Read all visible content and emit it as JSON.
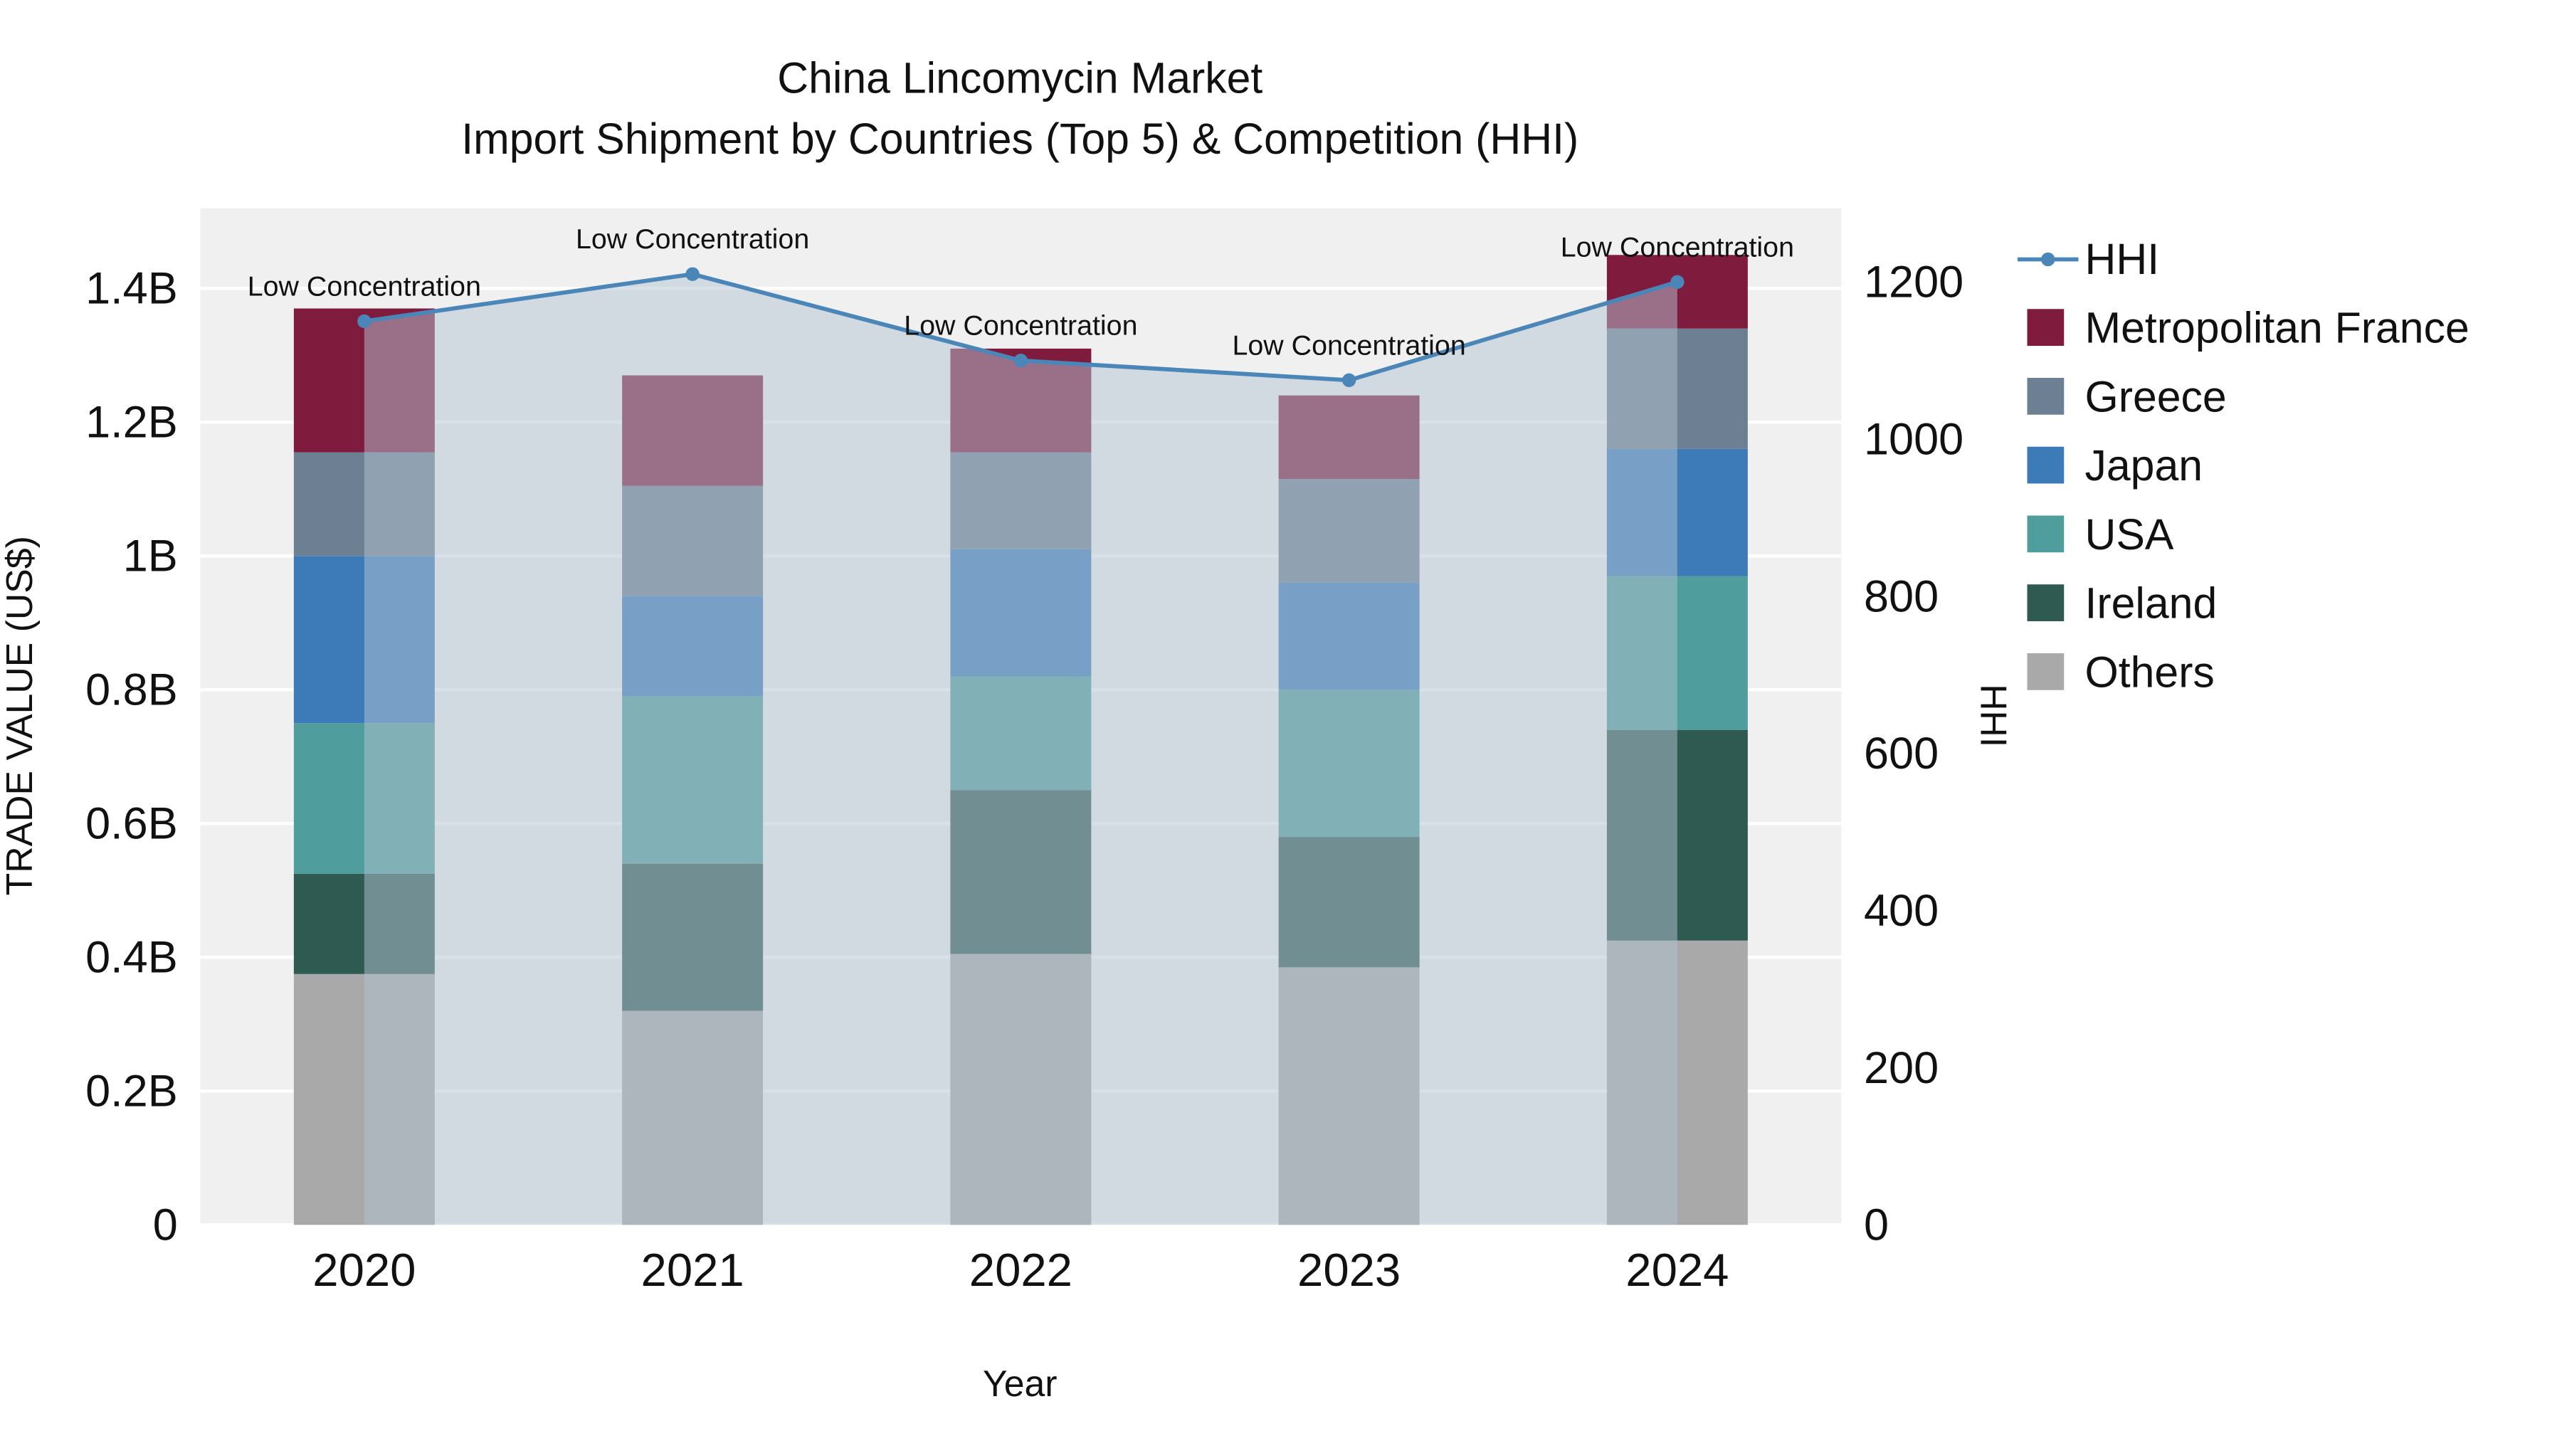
{
  "figure": {
    "title_line1": "China Lincomycin Market",
    "title_line2": "Import Shipment by Countries (Top 5) & Competition (HHI)"
  },
  "chart_data": {
    "type": "bar",
    "subtype": "stacked-bar-with-line-overlay",
    "x_title": "Year",
    "y_left_title": "TRADE VALUE (US$)",
    "y_right_title": "HHI",
    "categories": [
      "2020",
      "2021",
      "2022",
      "2023",
      "2024"
    ],
    "bar_value_unit": "billions USD",
    "stack_order": "bottom-to-top",
    "series": [
      {
        "name": "Others",
        "color": "#a9a9a9",
        "values": [
          0.375,
          0.32,
          0.405,
          0.385,
          0.425
        ]
      },
      {
        "name": "Ireland",
        "color": "#2e5a52",
        "values": [
          0.15,
          0.22,
          0.245,
          0.195,
          0.315
        ]
      },
      {
        "name": "USA",
        "color": "#4f9e9d",
        "values": [
          0.225,
          0.25,
          0.17,
          0.22,
          0.23
        ]
      },
      {
        "name": "Japan",
        "color": "#3d7ab8",
        "values": [
          0.25,
          0.15,
          0.19,
          0.16,
          0.19
        ]
      },
      {
        "name": "Greece",
        "color": "#6d7f92",
        "values": [
          0.155,
          0.165,
          0.145,
          0.155,
          0.18
        ]
      },
      {
        "name": "Metropolitan France",
        "color": "#7f1c3e",
        "values": [
          0.215,
          0.165,
          0.155,
          0.125,
          0.11
        ]
      }
    ],
    "bar_totals": [
      1.37,
      1.27,
      1.31,
      1.24,
      1.45
    ],
    "line_series": {
      "name": "HHI",
      "values": [
        1150,
        1210,
        1100,
        1075,
        1200
      ],
      "color": "#4a86b8",
      "fill_color": "rgba(180,195,210,0.5)",
      "fill_to_zero": true
    },
    "annotations": [
      "Low Concentration",
      "Low Concentration",
      "Low Concentration",
      "Low Concentration",
      "Low Concentration"
    ],
    "left_ticks": [
      {
        "v": 0,
        "label": "0"
      },
      {
        "v": 0.2,
        "label": "0.2B"
      },
      {
        "v": 0.4,
        "label": "0.4B"
      },
      {
        "v": 0.6,
        "label": "0.6B"
      },
      {
        "v": 0.8,
        "label": "0.8B"
      },
      {
        "v": 1.0,
        "label": "1B"
      },
      {
        "v": 1.2,
        "label": "1.2B"
      },
      {
        "v": 1.4,
        "label": "1.4B"
      }
    ],
    "right_ticks": [
      {
        "v": 0,
        "label": "0"
      },
      {
        "v": 200,
        "label": "200"
      },
      {
        "v": 400,
        "label": "400"
      },
      {
        "v": 600,
        "label": "600"
      },
      {
        "v": 800,
        "label": "800"
      },
      {
        "v": 1000,
        "label": "1000"
      },
      {
        "v": 1200,
        "label": "1200"
      }
    ],
    "ylim_left": [
      0,
      1.52
    ],
    "ylim_right": [
      0,
      1294
    ],
    "plot_bg": "#f0f0f0",
    "grid_color": "#ffffff",
    "grid_on": true,
    "legend_position": "right",
    "legend": [
      {
        "label": "HHI",
        "type": "line",
        "color": "#4a86b8"
      },
      {
        "label": "Metropolitan France",
        "type": "square",
        "color": "#7f1c3e"
      },
      {
        "label": "Greece",
        "type": "square",
        "color": "#6d7f92"
      },
      {
        "label": "Japan",
        "type": "square",
        "color": "#3d7ab8"
      },
      {
        "label": "USA",
        "type": "square",
        "color": "#4f9e9d"
      },
      {
        "label": "Ireland",
        "type": "square",
        "color": "#2e5a52"
      },
      {
        "label": "Others",
        "type": "square",
        "color": "#a9a9a9"
      }
    ]
  }
}
